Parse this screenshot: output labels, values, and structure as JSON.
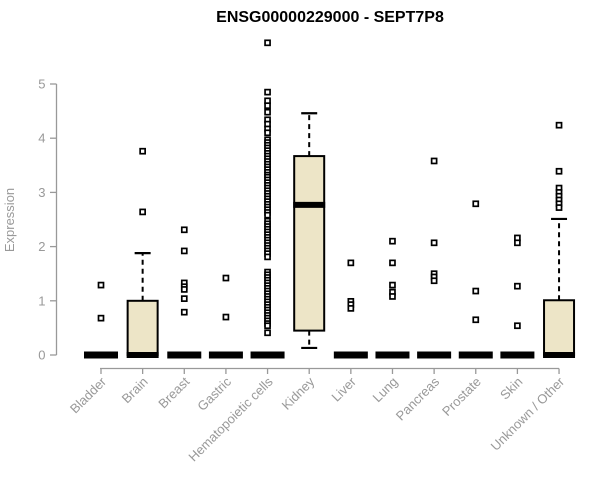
{
  "page": {
    "background": "#ffffff"
  },
  "chart_data": {
    "type": "boxplot",
    "title": "ENSG00000229000 - SEPT7P8",
    "ylabel": "Expression",
    "xlabel": "",
    "ylim": [
      0,
      5
    ],
    "yticks": [
      0,
      1,
      2,
      3,
      4,
      5
    ],
    "grid": false,
    "legend": "none",
    "colors": {
      "box_fill": "#EDE5C7",
      "box_stroke": "#000000",
      "median": "#000000",
      "whisker": "#000000",
      "axis": "#999999",
      "tick_label": "#999999",
      "title": "#000000",
      "outlier_fill": "#FFFFFF",
      "outlier_stroke": "#000000"
    },
    "categories": [
      "Bladder",
      "Brain",
      "Breast",
      "Gastric",
      "Hematopoietic cells",
      "Kidney",
      "Liver",
      "Lung",
      "Pancreas",
      "Prostate",
      "Skin",
      "Unknown / Other"
    ],
    "series": [
      {
        "category": "Bladder",
        "q1": 0,
        "median": 0,
        "q3": 0,
        "whisker_low": 0,
        "whisker_high": 0,
        "points": [
          1.29,
          0.68
        ]
      },
      {
        "category": "Brain",
        "q1": 0,
        "median": 0,
        "q3": 1.0,
        "whisker_low": 0,
        "whisker_high": 1.88,
        "points": [
          3.76,
          2.64
        ]
      },
      {
        "category": "Breast",
        "q1": 0,
        "median": 0,
        "q3": 0,
        "whisker_low": 0,
        "whisker_high": 0,
        "points": [
          2.31,
          1.92,
          1.33,
          1.26,
          1.21,
          1.04,
          0.79
        ]
      },
      {
        "category": "Gastric",
        "q1": 0,
        "median": 0,
        "q3": 0,
        "whisker_low": 0,
        "whisker_high": 0,
        "points": [
          1.42,
          0.7
        ]
      },
      {
        "category": "Hematopoietic cells",
        "q1": 0,
        "median": 0,
        "q3": 0,
        "whisker_low": 0,
        "whisker_high": 0,
        "points": [
          5.76,
          4.85,
          4.69,
          4.6,
          4.48,
          4.34,
          4.26,
          4.17,
          4.1,
          3.97,
          3.92,
          3.87,
          3.82,
          3.77,
          3.72,
          3.67,
          3.62,
          3.57,
          3.52,
          3.47,
          3.42,
          3.37,
          3.32,
          3.28,
          3.23,
          3.18,
          3.13,
          3.08,
          3.03,
          2.98,
          2.93,
          2.88,
          2.83,
          2.78,
          2.73,
          2.68,
          2.63,
          2.58,
          2.47,
          2.42,
          2.37,
          2.32,
          2.27,
          2.22,
          2.17,
          2.12,
          2.07,
          2.02,
          1.97,
          1.92,
          1.87,
          1.81,
          1.53,
          1.48,
          1.43,
          1.38,
          1.33,
          1.28,
          1.23,
          1.18,
          1.13,
          1.08,
          1.03,
          0.98,
          0.93,
          0.88,
          0.83,
          0.78,
          0.73,
          0.68,
          0.63,
          0.58,
          0.54,
          0.41
        ]
      },
      {
        "category": "Kidney",
        "q1": 0.45,
        "median": 2.77,
        "q3": 3.67,
        "whisker_low": 0.13,
        "whisker_high": 4.46,
        "points": []
      },
      {
        "category": "Liver",
        "q1": 0,
        "median": 0,
        "q3": 0,
        "whisker_low": 0,
        "whisker_high": 0,
        "points": [
          1.7,
          0.99,
          0.93,
          0.86
        ]
      },
      {
        "category": "Lung",
        "q1": 0,
        "median": 0,
        "q3": 0,
        "whisker_low": 0,
        "whisker_high": 0,
        "points": [
          2.1,
          1.7,
          1.29,
          1.16,
          1.08
        ]
      },
      {
        "category": "Pancreas",
        "q1": 0,
        "median": 0,
        "q3": 0,
        "whisker_low": 0,
        "whisker_high": 0,
        "points": [
          3.58,
          2.07,
          1.5,
          1.44,
          1.37
        ]
      },
      {
        "category": "Prostate",
        "q1": 0,
        "median": 0,
        "q3": 0,
        "whisker_low": 0,
        "whisker_high": 0,
        "points": [
          2.79,
          1.18,
          0.65
        ]
      },
      {
        "category": "Skin",
        "q1": 0,
        "median": 0,
        "q3": 0,
        "whisker_low": 0,
        "whisker_high": 0,
        "points": [
          2.16,
          2.07,
          1.27,
          0.54
        ]
      },
      {
        "category": "Unknown / Other",
        "q1": 0,
        "median": 0,
        "q3": 1.01,
        "whisker_low": 0,
        "whisker_high": 2.51,
        "points": [
          4.24,
          3.39,
          3.08,
          3.0,
          2.93,
          2.86,
          2.79,
          2.72
        ]
      }
    ]
  }
}
